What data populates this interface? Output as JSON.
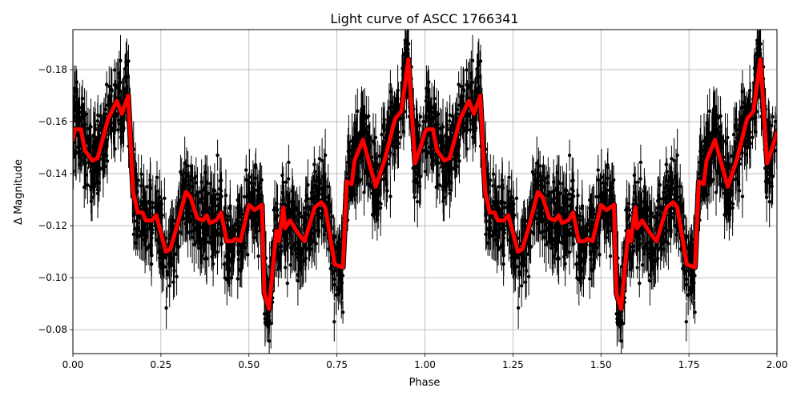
{
  "chart_data": {
    "type": "scatter",
    "title": "Light curve of ASCC 1766341",
    "xlabel": "Phase",
    "ylabel": "Δ Magnitude",
    "xlim": [
      0.0,
      2.0
    ],
    "ylim": [
      -0.0708,
      -0.1954
    ],
    "y_inverted": true,
    "grid": true,
    "xticks": [
      0.0,
      0.25,
      0.5,
      0.75,
      1.0,
      1.25,
      1.5,
      1.75,
      2.0
    ],
    "xtick_labels": [
      "0.00",
      "0.25",
      "0.50",
      "0.75",
      "1.00",
      "1.25",
      "1.50",
      "1.75",
      "2.00"
    ],
    "yticks": [
      -0.18,
      -0.16,
      -0.14,
      -0.12,
      -0.1,
      -0.08
    ],
    "ytick_labels": [
      "−0.18",
      "−0.16",
      "−0.14",
      "−0.12",
      "−0.10",
      "−0.08"
    ],
    "legend": null,
    "series": [
      {
        "name": "observations",
        "kind": "errorbar-scatter",
        "color": "#000000",
        "note": "dense phase-folded photometry with vertical error bars (~0.005–0.01 mag), scattered ±0.02 mag around the binned curve; repeats for phase 1–2"
      },
      {
        "name": "binned model",
        "kind": "line",
        "color": "#ff0000",
        "edge_color": "#000000",
        "period_repeat": 1.0,
        "x": [
          0.0,
          0.005,
          0.023,
          0.034,
          0.055,
          0.07,
          0.1,
          0.125,
          0.139,
          0.157,
          0.171,
          0.184,
          0.198,
          0.207,
          0.225,
          0.237,
          0.264,
          0.277,
          0.298,
          0.321,
          0.334,
          0.353,
          0.369,
          0.38,
          0.389,
          0.407,
          0.421,
          0.437,
          0.453,
          0.462,
          0.476,
          0.5,
          0.516,
          0.537,
          0.544,
          0.557,
          0.578,
          0.585,
          0.598,
          0.603,
          0.617,
          0.64,
          0.658,
          0.687,
          0.705,
          0.717,
          0.744,
          0.767,
          0.778,
          0.792,
          0.8,
          0.824,
          0.86,
          0.885,
          0.915,
          0.933,
          0.953,
          0.972,
          0.987,
          1.0
        ],
        "values": [
          -0.153,
          -0.157,
          -0.157,
          -0.149,
          -0.145,
          -0.146,
          -0.161,
          -0.168,
          -0.163,
          -0.17,
          -0.133,
          -0.125,
          -0.125,
          -0.122,
          -0.122,
          -0.124,
          -0.11,
          -0.111,
          -0.121,
          -0.133,
          -0.131,
          -0.123,
          -0.122,
          -0.124,
          -0.121,
          -0.122,
          -0.125,
          -0.114,
          -0.114,
          -0.115,
          -0.114,
          -0.128,
          -0.126,
          -0.128,
          -0.094,
          -0.088,
          -0.118,
          -0.114,
          -0.127,
          -0.119,
          -0.122,
          -0.117,
          -0.114,
          -0.127,
          -0.129,
          -0.127,
          -0.105,
          -0.104,
          -0.137,
          -0.136,
          -0.145,
          -0.153,
          -0.135,
          -0.145,
          -0.161,
          -0.164,
          -0.184,
          -0.144,
          -0.15,
          -0.156
        ]
      }
    ]
  }
}
